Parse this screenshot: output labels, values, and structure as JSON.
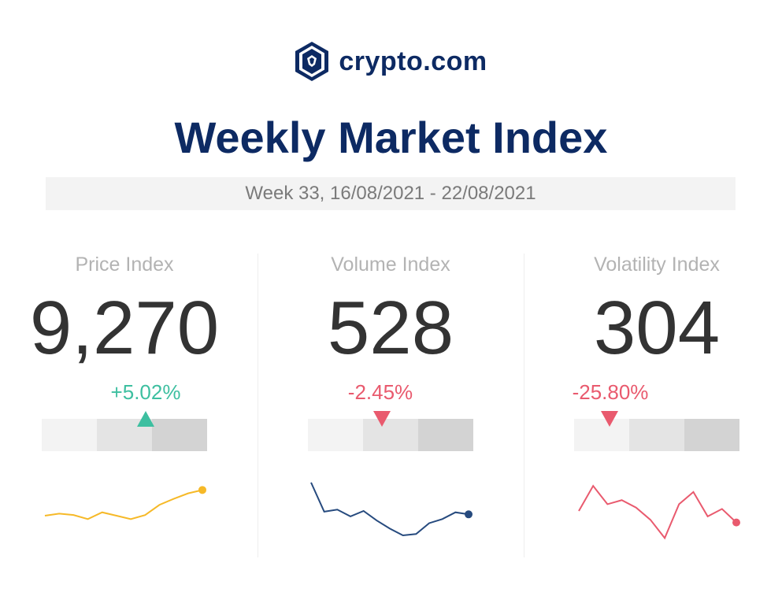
{
  "brand": {
    "name": "crypto.com"
  },
  "title": "Weekly Market Index",
  "week_label": "Week 33, 16/08/2021 - 22/08/2021",
  "colors": {
    "brand": "#0d2a63",
    "positive": "#3dbfa0",
    "negative": "#e95a6e",
    "price_line": "#f6b928",
    "volume_line": "#264a7e",
    "volatility_line": "#e95a6e"
  },
  "chart_data": [
    {
      "type": "line",
      "title": "Price Index",
      "value": "9,270",
      "change": "+5.02%",
      "direction": "up",
      "gauge_position": 0.63,
      "series": [
        {
          "values": [
            43,
            46,
            44,
            38,
            48,
            43,
            38,
            44,
            59,
            68,
            76,
            81
          ]
        }
      ],
      "ylim": [
        0,
        100
      ]
    },
    {
      "type": "line",
      "title": "Volume Index",
      "value": "528",
      "change": "-2.45%",
      "direction": "down",
      "gauge_position": 0.45,
      "series": [
        {
          "values": [
            92,
            49,
            52,
            42,
            50,
            36,
            24,
            14,
            16,
            32,
            38,
            48,
            45
          ]
        }
      ],
      "ylim": [
        0,
        100
      ]
    },
    {
      "type": "line",
      "title": "Volatility Index",
      "value": "304",
      "change": "-25.80%",
      "direction": "down",
      "gauge_position": 0.21,
      "series": [
        {
          "values": [
            50,
            87,
            60,
            66,
            55,
            37,
            10,
            60,
            78,
            42,
            53,
            33
          ]
        }
      ],
      "ylim": [
        0,
        100
      ]
    }
  ]
}
